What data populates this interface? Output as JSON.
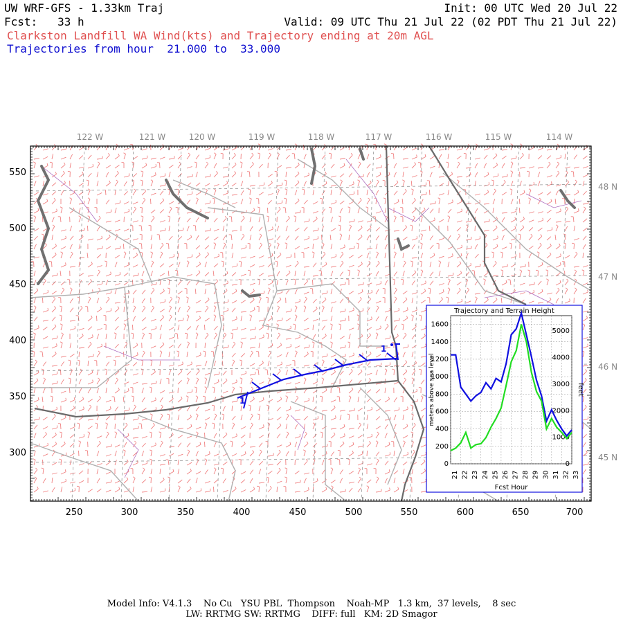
{
  "header": {
    "title_left": "UW WRF-GFS - 1.33km Traj",
    "init": "Init: 00 UTC Wed 20 Jul 22",
    "fcst": "Fcst:   33 h",
    "valid": "Valid: 09 UTC Thu 21 Jul 22 (02 PDT Thu 21 Jul 22)",
    "subtitle": "Clarkston Landfill WA Wind(kts) and Trajectory ending at 20m AGL",
    "traj_range": "Trajectories from hour  21.000 to  33.000"
  },
  "map": {
    "lon_labels": [
      "122 W",
      "121 W",
      "120 W",
      "119 W",
      "118 W",
      "117 W",
      "116 W",
      "115 W",
      "114 W"
    ],
    "lat_labels": [
      "48 N",
      "47 N",
      "46 N",
      "45 N"
    ],
    "y_ticks": [
      "550",
      "500",
      "450",
      "400",
      "350",
      "300"
    ],
    "x_ticks": [
      "250",
      "300",
      "350",
      "400",
      "450",
      "500",
      "550",
      "600",
      "650",
      "700"
    ],
    "trajectory_labels": [
      "1",
      "1"
    ],
    "colors": {
      "wind": "#f08080",
      "border": "#999999",
      "river": "#707070",
      "county": "#b070c0",
      "trajectory": "#1010e0"
    }
  },
  "inset": {
    "title": "Trajectory and Terrain Height",
    "ylabel_left": "meters above sea level",
    "ylabel_right": "feet",
    "xlabel": "Fcst Hour",
    "left_ticks": [
      "0",
      "200",
      "400",
      "600",
      "800",
      "1000",
      "1200",
      "1400",
      "1600"
    ],
    "right_ticks": [
      "0",
      "1000",
      "2000",
      "3000",
      "4000",
      "5000"
    ],
    "x_ticks": [
      "21",
      "22",
      "23",
      "24",
      "25",
      "26",
      "27",
      "28",
      "29",
      "30",
      "31",
      "32",
      "33"
    ]
  },
  "chart_data": {
    "type": "line",
    "title": "Trajectory and Terrain Height",
    "xlabel": "Fcst Hour",
    "ylabel": "meters above sea level",
    "xlim": [
      21,
      33
    ],
    "ylim": [
      0,
      1700
    ],
    "x": [
      21,
      21.5,
      22,
      22.5,
      23,
      23.5,
      24,
      24.5,
      25,
      25.5,
      26,
      26.5,
      27,
      27.5,
      28,
      28.5,
      29,
      29.5,
      30,
      30.5,
      31,
      31.5,
      32,
      32.5,
      33
    ],
    "series": [
      {
        "color": "#1010e0",
        "values": [
          1250,
          1250,
          880,
          800,
          720,
          780,
          820,
          930,
          860,
          980,
          940,
          1150,
          1480,
          1550,
          1730,
          1480,
          1230,
          960,
          780,
          490,
          620,
          500,
          400,
          320,
          390
        ]
      },
      {
        "color": "#22dd22",
        "values": [
          150,
          180,
          240,
          360,
          180,
          220,
          230,
          300,
          420,
          520,
          640,
          900,
          1170,
          1300,
          1600,
          1400,
          1050,
          830,
          720,
          400,
          520,
          420,
          360,
          290,
          360
        ]
      }
    ]
  }
}
